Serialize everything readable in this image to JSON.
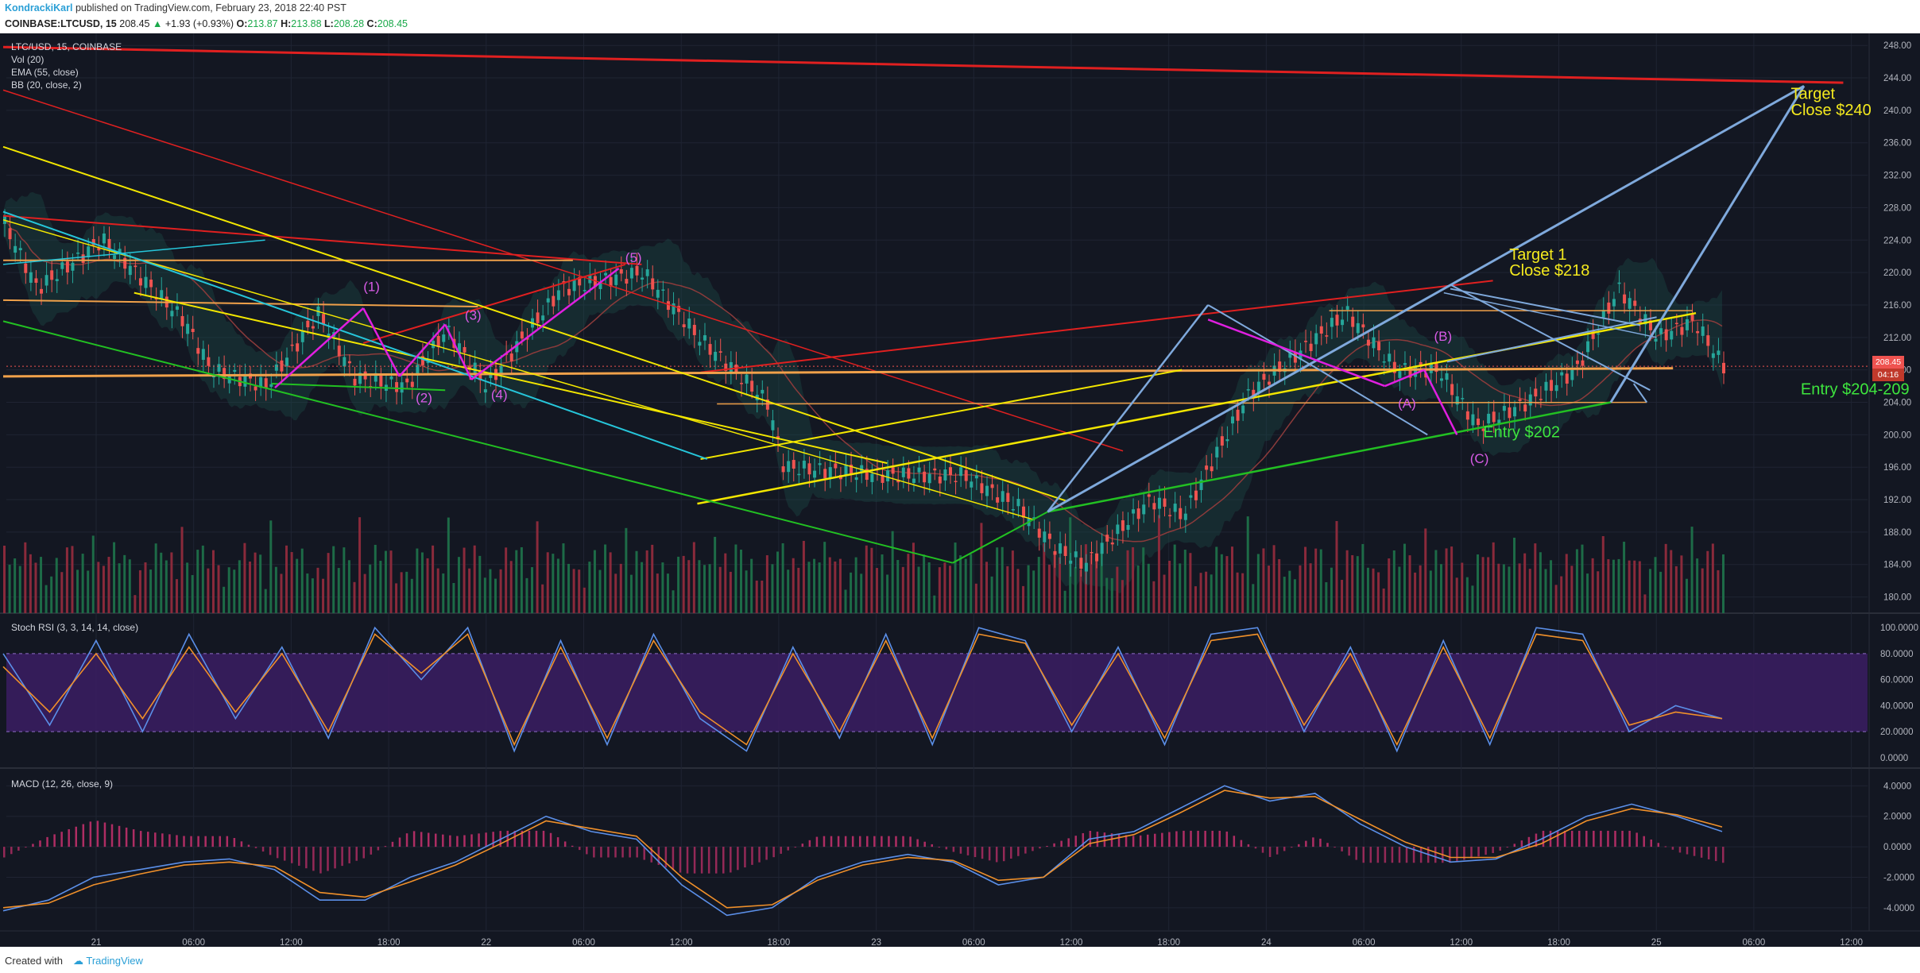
{
  "header": {
    "author": "KondrackiKarl",
    "published_text": "published on TradingView.com, February 23, 2018 22:40 PST",
    "symbol": "COINBASE:LTCUSD, 15",
    "last": "208.45",
    "change": "+1.93 (+0.93%)",
    "open_label": "O:",
    "open": "213.87",
    "high_label": "H:",
    "high": "213.88",
    "low_label": "L:",
    "low": "208.28",
    "close_label": "C:",
    "close": "208.45"
  },
  "legend": {
    "title": "LTC/USD, 15, COINBASE",
    "vol": "Vol (20)",
    "ema": "EMA (55, close)",
    "bb": "BB (20, close, 2)",
    "stoch": "Stoch RSI (3, 3, 14, 14, close)",
    "macd": "MACD (12, 26, close, 9)"
  },
  "price_tag": {
    "price": "208.45",
    "countdown": "04:16"
  },
  "footer": {
    "created": "Created with",
    "brand": "TradingView"
  },
  "colors": {
    "background": "#131722",
    "up": "#26a69a",
    "down": "#ef5350",
    "red_line": "#e02020",
    "yellow_line": "#f2e600",
    "blue_line": "#7fa9dc",
    "magenta": "#e01fe0",
    "green": "#22c022",
    "cyan": "#26c6da",
    "orange": "#f0a14a"
  },
  "chart_data": [
    {
      "type": "line",
      "title": "LTC/USD, 15, COINBASE",
      "x_ticks": [
        "21",
        "06:00",
        "12:00",
        "18:00",
        "22",
        "06:00",
        "12:00",
        "18:00",
        "23",
        "06:00",
        "12:00",
        "18:00",
        "24",
        "06:00",
        "12:00",
        "18:00",
        "25",
        "06:00",
        "12:00"
      ],
      "price_axis": [
        "248.00",
        "244.00",
        "240.00",
        "236.00",
        "232.00",
        "228.00",
        "224.00",
        "220.00",
        "216.00",
        "212.00",
        "208.00",
        "204.00",
        "200.00",
        "196.00",
        "192.00",
        "188.00",
        "184.00",
        "180.00"
      ],
      "ylim": [
        178,
        249
      ],
      "candles": [
        {
          "x": 0.0,
          "price": 226
        },
        {
          "x": 1.0,
          "price": 218
        },
        {
          "x": 3.0,
          "price": 224
        },
        {
          "x": 5.5,
          "price": 214
        },
        {
          "x": 6.3,
          "price": 208
        },
        {
          "x": 8.0,
          "price": 206
        },
        {
          "x": 9.6,
          "price": 215
        },
        {
          "x": 10.7,
          "price": 207
        },
        {
          "x": 12.3,
          "price": 206
        },
        {
          "x": 13.5,
          "price": 213
        },
        {
          "x": 14.7,
          "price": 206
        },
        {
          "x": 17.0,
          "price": 218
        },
        {
          "x": 19.5,
          "price": 220
        },
        {
          "x": 21.2,
          "price": 212
        },
        {
          "x": 23.3,
          "price": 204
        },
        {
          "x": 23.8,
          "price": 196
        },
        {
          "x": 27.0,
          "price": 195
        },
        {
          "x": 29.3,
          "price": 195
        },
        {
          "x": 31.0,
          "price": 191
        },
        {
          "x": 32.1,
          "price": 186
        },
        {
          "x": 33.0,
          "price": 184
        },
        {
          "x": 35.0,
          "price": 192
        },
        {
          "x": 36.0,
          "price": 190
        },
        {
          "x": 38.0,
          "price": 205
        },
        {
          "x": 41.0,
          "price": 215
        },
        {
          "x": 42.5,
          "price": 208
        },
        {
          "x": 43.8,
          "price": 208
        },
        {
          "x": 45.0,
          "price": 201
        },
        {
          "x": 46.5,
          "price": 204
        },
        {
          "x": 48.0,
          "price": 208
        },
        {
          "x": 49.3,
          "price": 218
        },
        {
          "x": 50.5,
          "price": 212
        },
        {
          "x": 51.6,
          "price": 214
        },
        {
          "x": 52.5,
          "price": 208.45
        }
      ],
      "annotations": [
        {
          "text": "(1)",
          "x": 11.0,
          "price": 217.7
        },
        {
          "text": "(2)",
          "x": 12.6,
          "price": 204.0
        },
        {
          "text": "(3)",
          "x": 14.1,
          "price": 214.2
        },
        {
          "text": "(4)",
          "x": 14.9,
          "price": 204.4
        },
        {
          "text": "(5)",
          "x": 19.0,
          "price": 221.3
        },
        {
          "text": "(A)",
          "x": 42.6,
          "price": 203.3
        },
        {
          "text": "(B)",
          "x": 43.7,
          "price": 211.6
        },
        {
          "text": "(C)",
          "x": 44.8,
          "price": 196.5
        },
        {
          "text": "Target",
          "x": 54.6,
          "price": 241.4
        },
        {
          "text": "Close $240",
          "x": 54.6,
          "price": 239.4
        },
        {
          "text": "Target 1",
          "x": 46.0,
          "price": 221.6
        },
        {
          "text": "Close $218",
          "x": 46.0,
          "price": 219.6
        },
        {
          "text": "Entry $204-209",
          "x": 54.9,
          "price": 205.0
        },
        {
          "text": "Entry $202",
          "x": 45.2,
          "price": 199.7
        }
      ]
    },
    {
      "type": "line",
      "title": "Stoch RSI (3, 3, 14, 14, close)",
      "y_ticks": [
        "100.0000",
        "80.0000",
        "60.0000",
        "40.0000",
        "20.0000",
        "0.0000"
      ],
      "ylim": [
        -5,
        105
      ],
      "band": [
        20,
        80
      ],
      "series": [
        {
          "color": "#5b8fe8",
          "values": [
            80,
            25,
            90,
            20,
            95,
            30,
            85,
            15,
            100,
            60,
            100,
            5,
            90,
            10,
            95,
            30,
            5,
            85,
            15,
            95,
            10,
            100,
            90,
            20,
            85,
            10,
            95,
            100,
            20,
            85,
            5,
            90,
            10,
            100,
            95,
            20,
            40,
            30
          ]
        },
        {
          "color": "#f0902a",
          "values": [
            70,
            35,
            80,
            30,
            85,
            35,
            80,
            20,
            95,
            65,
            95,
            10,
            85,
            15,
            90,
            35,
            10,
            80,
            20,
            90,
            15,
            95,
            88,
            25,
            80,
            15,
            90,
            95,
            25,
            80,
            10,
            85,
            15,
            95,
            90,
            25,
            35,
            30
          ]
        }
      ]
    },
    {
      "type": "line",
      "title": "MACD (12, 26, close, 9)",
      "y_ticks": [
        "4.0000",
        "2.0000",
        "0.0000",
        "-2.0000",
        "-4.0000"
      ],
      "ylim": [
        -5,
        4.8
      ],
      "series": [
        {
          "color": "#5b8fe8",
          "values": [
            -4.2,
            -3.5,
            -2.0,
            -1.5,
            -1.0,
            -0.8,
            -1.5,
            -3.5,
            -3.5,
            -2.0,
            -1.0,
            0.5,
            2.0,
            1.0,
            0.5,
            -2.5,
            -4.5,
            -4.0,
            -2.0,
            -1.0,
            -0.5,
            -1.0,
            -2.5,
            -2.0,
            0.5,
            1.0,
            2.5,
            4.0,
            3.0,
            3.5,
            1.5,
            0.0,
            -1.0,
            -0.8,
            0.5,
            2.0,
            2.8,
            2.0,
            1.0
          ]
        },
        {
          "color": "#f0902a",
          "values": [
            -4.0,
            -3.7,
            -2.5,
            -1.8,
            -1.2,
            -1.0,
            -1.3,
            -3.0,
            -3.3,
            -2.3,
            -1.2,
            0.2,
            1.7,
            1.2,
            0.7,
            -2.0,
            -4.0,
            -3.8,
            -2.2,
            -1.2,
            -0.7,
            -0.9,
            -2.2,
            -2.0,
            0.2,
            0.8,
            2.2,
            3.7,
            3.2,
            3.3,
            1.8,
            0.3,
            -0.7,
            -0.7,
            0.2,
            1.7,
            2.5,
            2.1,
            1.3
          ]
        }
      ]
    }
  ]
}
